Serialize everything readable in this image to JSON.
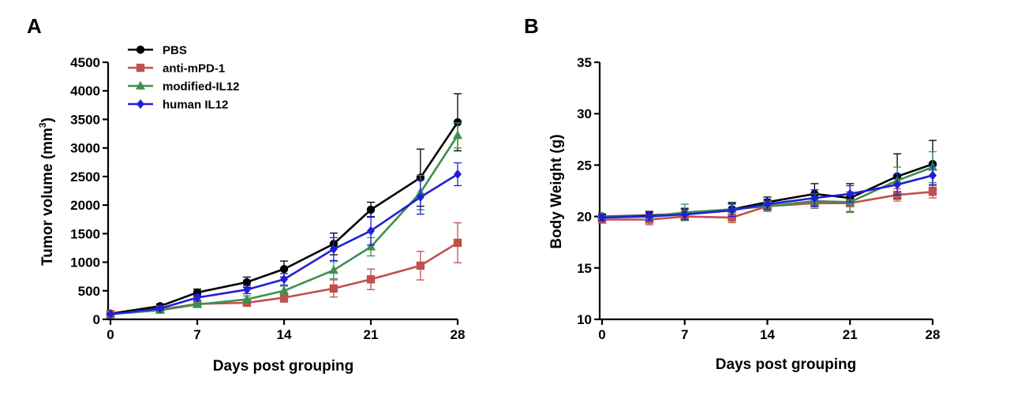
{
  "chart_data": [
    {
      "panel_label": "A",
      "type": "line",
      "xlabel": "Days post grouping",
      "ylabel_main": "Tumor volume (mm",
      "ylabel_sup": "3",
      "ylabel_tail": ")",
      "xlim": [
        0,
        28
      ],
      "ylim": [
        0,
        4500
      ],
      "xticks": [
        0,
        7,
        14,
        21,
        28
      ],
      "yticks": [
        0,
        500,
        1000,
        1500,
        2000,
        2500,
        3000,
        3500,
        4000,
        4500
      ],
      "grid": false,
      "legend": "top-left",
      "series": [
        {
          "name": "PBS",
          "color": "#000000",
          "marker": "circle",
          "x": [
            0,
            4,
            7,
            11,
            14,
            18,
            21,
            25,
            28
          ],
          "y": [
            100,
            230,
            470,
            650,
            880,
            1320,
            1920,
            2480,
            3450
          ],
          "err": [
            20,
            40,
            60,
            90,
            140,
            190,
            130,
            500,
            500
          ]
        },
        {
          "name": "anti-mPD-1",
          "color": "#c0504d",
          "marker": "square",
          "x": [
            0,
            4,
            7,
            11,
            14,
            18,
            21,
            25,
            28
          ],
          "y": [
            90,
            170,
            270,
            290,
            380,
            540,
            700,
            940,
            1340
          ],
          "err": [
            15,
            30,
            40,
            60,
            80,
            150,
            180,
            250,
            350
          ]
        },
        {
          "name": "modified-IL12",
          "color": "#3d8f4f",
          "marker": "triangle",
          "x": [
            0,
            4,
            7,
            11,
            14,
            18,
            21,
            25,
            28
          ],
          "y": [
            90,
            160,
            260,
            350,
            500,
            860,
            1270,
            2220,
            3220
          ],
          "err": [
            15,
            30,
            40,
            60,
            80,
            150,
            160,
            300,
            220
          ]
        },
        {
          "name": "human IL12",
          "color": "#1f1fd6",
          "marker": "diamond",
          "x": [
            0,
            4,
            7,
            11,
            14,
            18,
            21,
            25,
            28
          ],
          "y": [
            90,
            190,
            380,
            520,
            700,
            1230,
            1550,
            2140,
            2540
          ],
          "err": [
            15,
            30,
            50,
            70,
            100,
            200,
            250,
            300,
            200
          ]
        }
      ]
    },
    {
      "panel_label": "B",
      "type": "line",
      "xlabel": "Days post grouping",
      "ylabel_main": "Body Weight (g)",
      "xlim": [
        0,
        28
      ],
      "ylim": [
        10,
        35
      ],
      "xticks": [
        0,
        7,
        14,
        21,
        28
      ],
      "yticks": [
        10,
        15,
        20,
        25,
        30,
        35
      ],
      "grid": false,
      "series": [
        {
          "name": "PBS",
          "color": "#000000",
          "marker": "circle",
          "x": [
            0,
            4,
            7,
            11,
            14,
            18,
            21,
            25,
            28
          ],
          "y": [
            20.0,
            20.1,
            20.3,
            20.7,
            21.4,
            22.2,
            21.8,
            23.9,
            25.1
          ],
          "err": [
            0.3,
            0.4,
            0.5,
            0.6,
            0.5,
            1.0,
            1.4,
            2.2,
            2.3
          ]
        },
        {
          "name": "anti-mPD-1",
          "color": "#c0504d",
          "marker": "square",
          "x": [
            0,
            4,
            7,
            11,
            14,
            18,
            21,
            25,
            28
          ],
          "y": [
            19.7,
            19.7,
            20.0,
            19.9,
            21.0,
            21.3,
            21.3,
            22.1,
            22.4
          ],
          "err": [
            0.3,
            0.5,
            0.4,
            0.5,
            0.4,
            0.5,
            0.8,
            0.6,
            0.6
          ]
        },
        {
          "name": "modified-IL12",
          "color": "#3d8f4f",
          "marker": "triangle",
          "x": [
            0,
            4,
            7,
            11,
            14,
            18,
            21,
            25,
            28
          ],
          "y": [
            20.0,
            20.0,
            20.4,
            20.7,
            21.0,
            21.5,
            21.4,
            23.5,
            24.8
          ],
          "err": [
            0.3,
            0.4,
            0.8,
            0.7,
            0.5,
            0.7,
            1.0,
            1.3,
            1.5
          ]
        },
        {
          "name": "human IL12",
          "color": "#1f1fd6",
          "marker": "diamond",
          "x": [
            0,
            4,
            7,
            11,
            14,
            18,
            21,
            25,
            28
          ],
          "y": [
            19.9,
            20.0,
            20.2,
            20.6,
            21.2,
            21.8,
            22.2,
            23.1,
            24.0
          ],
          "err": [
            0.3,
            0.4,
            0.5,
            0.6,
            0.5,
            0.8,
            0.8,
            1.0,
            0.9
          ]
        }
      ]
    }
  ]
}
